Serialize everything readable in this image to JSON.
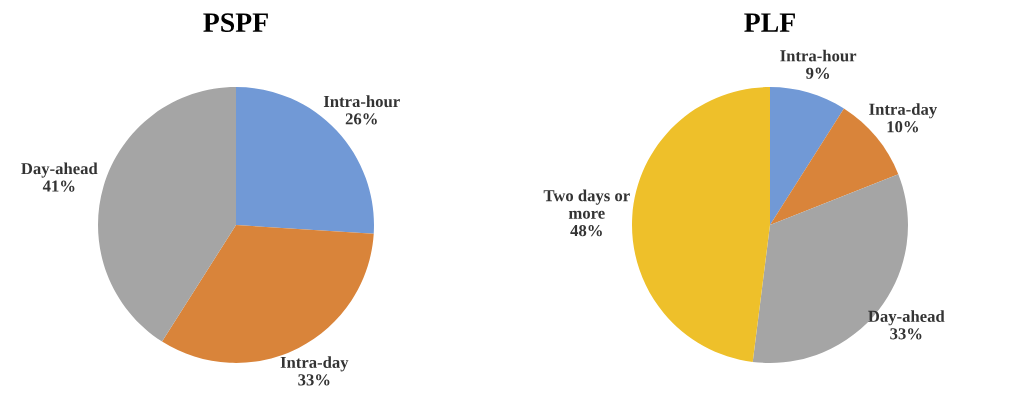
{
  "chart_data": [
    {
      "type": "pie",
      "title": "PSPF",
      "categories": [
        "Intra-hour",
        "Intra-day",
        "Day-ahead"
      ],
      "values": [
        26,
        33,
        41
      ],
      "value_labels": [
        "26%",
        "33%",
        "41%"
      ],
      "colors": [
        "#7199d6",
        "#d9843a",
        "#a5a5a5"
      ]
    },
    {
      "type": "pie",
      "title": "PLF",
      "categories": [
        "Intra-hour",
        "Intra-day",
        "Day-ahead",
        "Two days or\nmore"
      ],
      "values": [
        9,
        10,
        33,
        48
      ],
      "value_labels": [
        "9%",
        "10%",
        "33%",
        "48%"
      ],
      "colors": [
        "#7199d6",
        "#d9843a",
        "#a5a5a5",
        "#eec02a"
      ]
    }
  ]
}
